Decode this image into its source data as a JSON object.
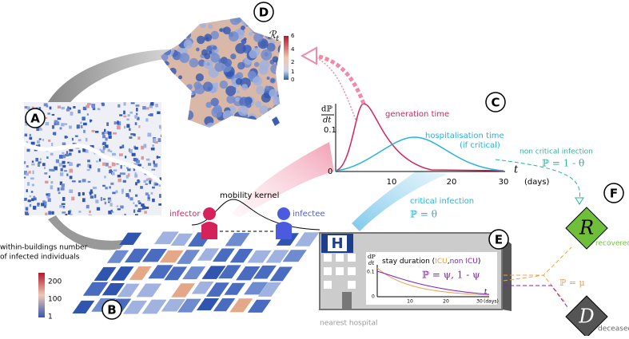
{
  "panels": {
    "a": "A",
    "b": "B",
    "c": "C",
    "d": "D",
    "e": "E",
    "f": "F"
  },
  "map_france": {
    "colorbar_symbol": "ℛ",
    "colorbar_subscript": "t",
    "colorbar_ticks": [
      "6",
      "4",
      "2",
      "1",
      "0"
    ]
  },
  "map_buildings": {
    "legend_line1": "within-buildings number",
    "legend_line2": "of infected individuals",
    "colorbar_ticks": [
      "200",
      "100",
      "1"
    ]
  },
  "transmission": {
    "kernel": "mobility kernel",
    "infector": "infector",
    "infectee": "infectee"
  },
  "chart_c": {
    "y_num": "dℙ",
    "y_den": "dt",
    "y_ticks": [
      "0.1",
      "0"
    ],
    "x_ticks": [
      "10",
      "20",
      "30"
    ],
    "x_symbol": "t",
    "x_unit": "(days)",
    "generation": "generation time",
    "hosp_line1": "hospitalisation time",
    "hosp_line2": "(if critical)"
  },
  "branches": {
    "non_critical": "non critical infection",
    "non_critical_p": "ℙ = 1 - θ",
    "critical": "critical infection",
    "critical_p": "ℙ = θ",
    "death_p": "ℙ = μ"
  },
  "hospital": {
    "icon": "H",
    "title": "stay duration (",
    "icu": "ICU",
    "sep": ",",
    "non_icu": "non ICU",
    "close": ")",
    "p": "ℙ = ψ,  1 - ψ",
    "y_num": "dℙ",
    "y_den": "dt",
    "y_ticks": [
      "0.1",
      "0"
    ],
    "x_ticks": [
      "10",
      "20",
      "30"
    ],
    "x_symbol": "t",
    "x_unit": "(days)",
    "caption": "nearest hospital"
  },
  "outcomes": {
    "recovered_symbol": "R",
    "recovered": "recovered",
    "deceased_symbol": "D",
    "deceased": "deceased"
  }
}
